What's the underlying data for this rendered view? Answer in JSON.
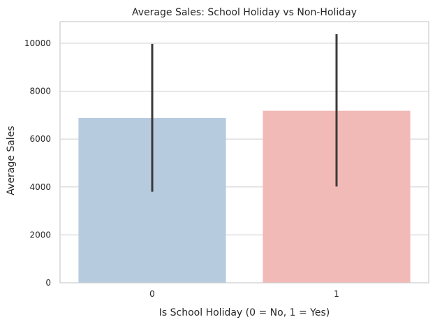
{
  "chart_data": {
    "type": "bar",
    "title": "Average Sales: School Holiday vs Non-Holiday",
    "xlabel": "Is School Holiday (0 = No, 1 = Yes)",
    "ylabel": "Average Sales",
    "categories": [
      "0",
      "1"
    ],
    "values": [
      6880,
      7180
    ],
    "error_bars": [
      {
        "low": 3800,
        "high": 9970
      },
      {
        "low": 4020,
        "high": 10380
      }
    ],
    "colors": [
      "#b7cbdf",
      "#f2bab6"
    ],
    "error_color": "#3a3a3a",
    "ylim": [
      0,
      10900
    ],
    "yticks": [
      0,
      2000,
      4000,
      6000,
      8000,
      10000
    ],
    "grid": true
  }
}
